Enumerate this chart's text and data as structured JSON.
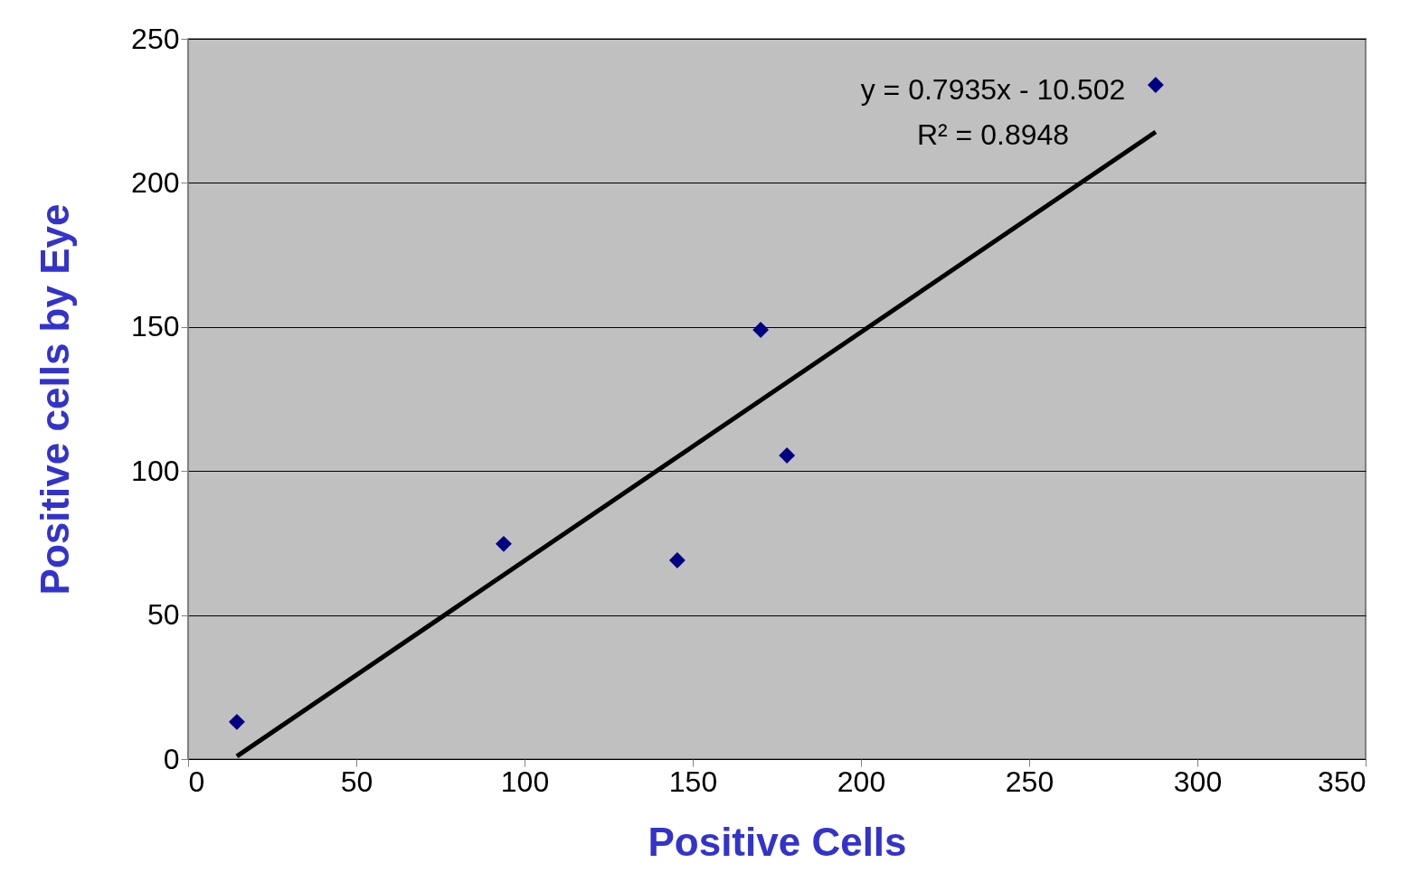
{
  "chart_data": {
    "type": "scatter",
    "xlabel": "Positive Cells",
    "ylabel": "Positive cells by Eye",
    "xlim": [
      0,
      350
    ],
    "xticks": [
      0,
      50,
      100,
      150,
      200,
      250,
      300,
      350
    ],
    "ylim": [
      0,
      250
    ],
    "yticks": [
      0,
      50,
      100,
      150,
      200,
      250
    ],
    "grid": "y",
    "marker": "diamond",
    "annotations": [
      "y = 0.7935x - 10.502",
      "R² = 0.8948"
    ],
    "series": [
      {
        "color": "#000080",
        "x": [
          14.5,
          93.8,
          145.4,
          170.2,
          178,
          287.6
        ],
        "values": [
          12.9,
          74.7,
          69,
          149,
          105.4,
          234
        ]
      },
      {
        "type": "line",
        "marker": "none",
        "color": "#000000",
        "x": [
          14.5,
          287.6
        ],
        "values": [
          1.0,
          217.7
        ]
      }
    ]
  }
}
